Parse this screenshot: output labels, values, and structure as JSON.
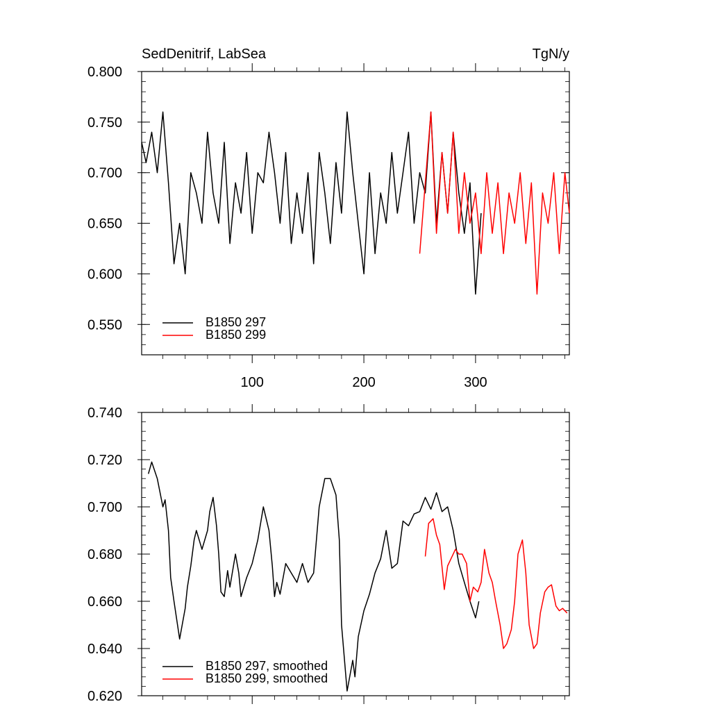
{
  "figure": {
    "title_left": "SedDenitrif, LabSea",
    "title_right": "TgN/y"
  },
  "chart_data": [
    {
      "type": "line",
      "title": "SedDenitrif, LabSea",
      "units": "TgN/y",
      "xlim": [
        1,
        384
      ],
      "ylim": [
        0.52,
        0.8
      ],
      "x_ticks": [
        100,
        200,
        300
      ],
      "x_ticklabels": [
        "100",
        "200",
        "300"
      ],
      "y_ticks": [
        0.55,
        0.6,
        0.65,
        0.7,
        0.75,
        0.8
      ],
      "y_ticklabels": [
        "0.550",
        "0.600",
        "0.650",
        "0.700",
        "0.750",
        "0.800"
      ],
      "grid": false,
      "legend": "bottom-left",
      "series": [
        {
          "name": "B1850 297",
          "color": "#000000",
          "x": [
            1,
            5,
            10,
            15,
            20,
            25,
            30,
            35,
            40,
            45,
            50,
            55,
            60,
            65,
            70,
            75,
            80,
            85,
            90,
            95,
            100,
            105,
            110,
            115,
            120,
            125,
            130,
            135,
            140,
            145,
            150,
            155,
            160,
            165,
            170,
            175,
            180,
            185,
            190,
            195,
            200,
            205,
            210,
            215,
            220,
            225,
            230,
            235,
            240,
            245,
            250,
            255,
            260,
            265,
            270,
            275,
            280,
            285,
            290,
            295,
            300,
            305
          ],
          "values": [
            0.73,
            0.71,
            0.74,
            0.7,
            0.76,
            0.69,
            0.61,
            0.65,
            0.6,
            0.7,
            0.68,
            0.65,
            0.74,
            0.68,
            0.65,
            0.73,
            0.63,
            0.69,
            0.66,
            0.72,
            0.64,
            0.7,
            0.69,
            0.74,
            0.7,
            0.65,
            0.72,
            0.63,
            0.68,
            0.64,
            0.7,
            0.61,
            0.72,
            0.68,
            0.63,
            0.71,
            0.66,
            0.76,
            0.7,
            0.65,
            0.6,
            0.7,
            0.62,
            0.68,
            0.65,
            0.72,
            0.66,
            0.7,
            0.74,
            0.65,
            0.7,
            0.68,
            0.76,
            0.65,
            0.72,
            0.66,
            0.74,
            0.68,
            0.64,
            0.69,
            0.58,
            0.66
          ]
        },
        {
          "name": "B1850 299",
          "color": "#ff0000",
          "x": [
            250,
            255,
            260,
            265,
            270,
            275,
            280,
            285,
            290,
            295,
            300,
            305,
            310,
            315,
            320,
            325,
            330,
            335,
            340,
            345,
            350,
            355,
            360,
            365,
            370,
            375,
            380,
            384
          ],
          "values": [
            0.62,
            0.69,
            0.76,
            0.64,
            0.72,
            0.66,
            0.74,
            0.64,
            0.7,
            0.65,
            0.68,
            0.62,
            0.7,
            0.64,
            0.69,
            0.62,
            0.68,
            0.65,
            0.7,
            0.63,
            0.69,
            0.58,
            0.68,
            0.65,
            0.7,
            0.62,
            0.7,
            0.66
          ]
        }
      ]
    },
    {
      "type": "line",
      "xlim": [
        1,
        384
      ],
      "ylim": [
        0.62,
        0.74
      ],
      "x_ticks": [
        100,
        200,
        300
      ],
      "y_ticks": [
        0.62,
        0.64,
        0.66,
        0.68,
        0.7,
        0.72,
        0.74
      ],
      "y_ticklabels": [
        "0.620",
        "0.640",
        "0.660",
        "0.680",
        "0.700",
        "0.720",
        "0.740"
      ],
      "grid": false,
      "legend": "bottom-left",
      "series": [
        {
          "name": "B1850 297, smoothed",
          "color": "#000000",
          "x": [
            7,
            10,
            15,
            20,
            22,
            25,
            27,
            30,
            35,
            40,
            42,
            45,
            48,
            50,
            55,
            60,
            62,
            65,
            68,
            70,
            72,
            75,
            78,
            80,
            85,
            88,
            90,
            95,
            100,
            105,
            110,
            115,
            118,
            120,
            122,
            125,
            130,
            135,
            140,
            145,
            150,
            155,
            160,
            165,
            170,
            175,
            178,
            180,
            185,
            190,
            192,
            195,
            200,
            205,
            210,
            215,
            220,
            225,
            230,
            235,
            240,
            245,
            250,
            255,
            260,
            265,
            270,
            275,
            280,
            285,
            290,
            295,
            300,
            303
          ],
          "values": [
            0.714,
            0.719,
            0.712,
            0.7,
            0.703,
            0.69,
            0.67,
            0.66,
            0.644,
            0.657,
            0.666,
            0.675,
            0.686,
            0.69,
            0.682,
            0.69,
            0.698,
            0.704,
            0.692,
            0.68,
            0.664,
            0.662,
            0.673,
            0.666,
            0.68,
            0.672,
            0.662,
            0.67,
            0.676,
            0.686,
            0.7,
            0.69,
            0.675,
            0.662,
            0.668,
            0.663,
            0.676,
            0.672,
            0.668,
            0.676,
            0.668,
            0.672,
            0.7,
            0.712,
            0.712,
            0.705,
            0.686,
            0.65,
            0.622,
            0.635,
            0.628,
            0.645,
            0.656,
            0.663,
            0.672,
            0.678,
            0.69,
            0.674,
            0.676,
            0.694,
            0.692,
            0.697,
            0.698,
            0.704,
            0.699,
            0.706,
            0.698,
            0.7,
            0.69,
            0.676,
            0.668,
            0.66,
            0.653,
            0.66
          ]
        },
        {
          "name": "B1850 299, smoothed",
          "color": "#ff0000",
          "x": [
            255,
            258,
            262,
            265,
            268,
            272,
            275,
            278,
            282,
            285,
            288,
            292,
            295,
            298,
            302,
            305,
            308,
            312,
            315,
            318,
            322,
            325,
            328,
            332,
            335,
            338,
            342,
            345,
            348,
            352,
            355,
            358,
            362,
            365,
            368,
            372,
            375,
            378,
            382
          ],
          "values": [
            0.679,
            0.693,
            0.695,
            0.688,
            0.684,
            0.665,
            0.675,
            0.678,
            0.682,
            0.68,
            0.68,
            0.676,
            0.66,
            0.666,
            0.664,
            0.668,
            0.682,
            0.672,
            0.668,
            0.66,
            0.65,
            0.64,
            0.642,
            0.648,
            0.66,
            0.68,
            0.686,
            0.672,
            0.65,
            0.64,
            0.642,
            0.655,
            0.664,
            0.666,
            0.667,
            0.658,
            0.656,
            0.657,
            0.655
          ]
        }
      ]
    }
  ]
}
